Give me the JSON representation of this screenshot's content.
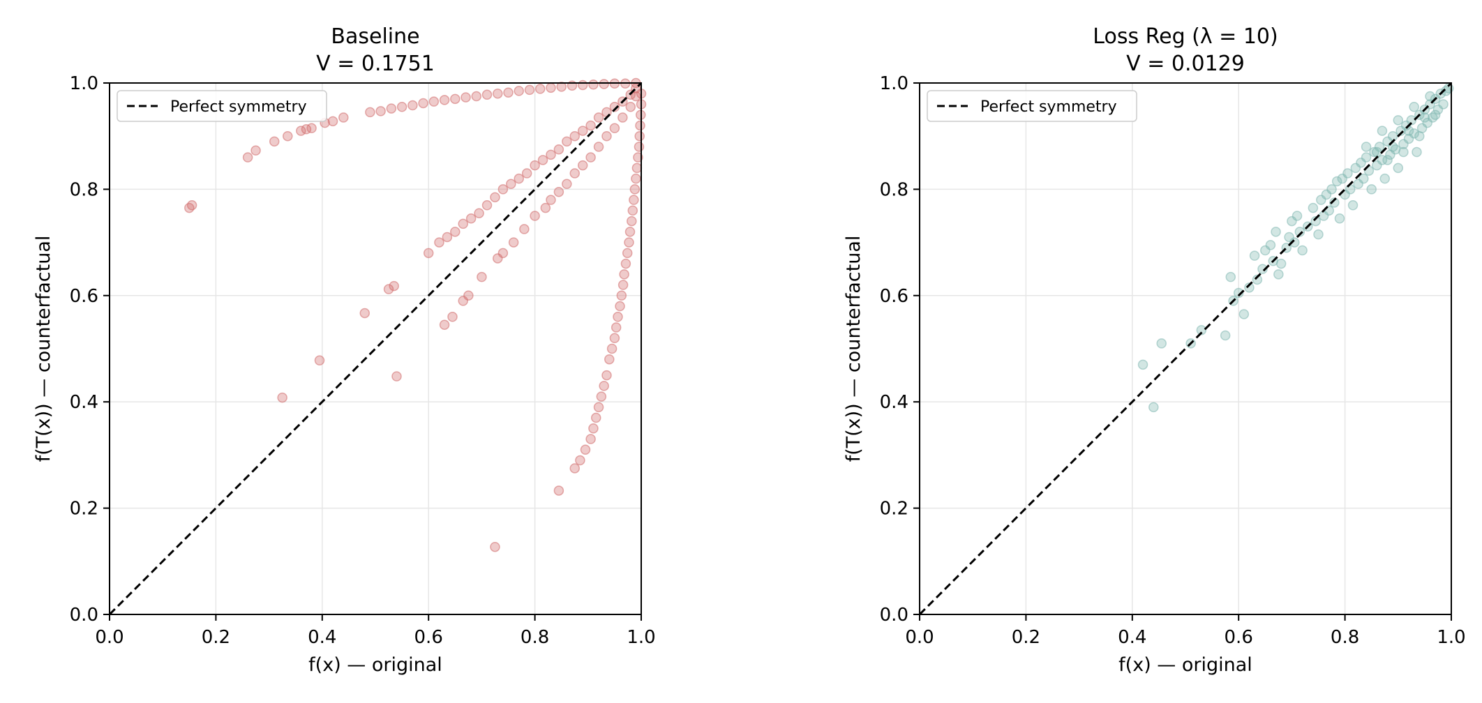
{
  "chart_data": [
    {
      "type": "scatter",
      "title": "Baseline",
      "subtitle": "V = 0.1751",
      "xlabel": "f(x)  — original",
      "ylabel": "f(T(x))  — counterfactual",
      "xlim": [
        0.0,
        1.0
      ],
      "ylim": [
        0.0,
        1.0
      ],
      "xticks": [
        "0.0",
        "0.2",
        "0.4",
        "0.6",
        "0.8",
        "1.0"
      ],
      "yticks": [
        "0.0",
        "0.2",
        "0.4",
        "0.6",
        "0.8",
        "1.0"
      ],
      "grid": true,
      "legend": {
        "position": "top-left",
        "entries": [
          "Perfect symmetry"
        ]
      },
      "reference_line": {
        "label": "Perfect symmetry",
        "from": [
          0,
          0
        ],
        "to": [
          1,
          1
        ],
        "style": "dashed",
        "color": "#000000"
      },
      "series": [
        {
          "color": "#d06a6a",
          "points": [
            [
              0.15,
              0.765
            ],
            [
              0.155,
              0.77
            ],
            [
              0.26,
              0.86
            ],
            [
              0.275,
              0.873
            ],
            [
              0.31,
              0.89
            ],
            [
              0.335,
              0.9
            ],
            [
              0.36,
              0.91
            ],
            [
              0.37,
              0.913
            ],
            [
              0.38,
              0.915
            ],
            [
              0.405,
              0.925
            ],
            [
              0.42,
              0.928
            ],
            [
              0.44,
              0.935
            ],
            [
              0.49,
              0.945
            ],
            [
              0.51,
              0.947
            ],
            [
              0.53,
              0.952
            ],
            [
              0.55,
              0.955
            ],
            [
              0.57,
              0.958
            ],
            [
              0.59,
              0.962
            ],
            [
              0.61,
              0.965
            ],
            [
              0.63,
              0.968
            ],
            [
              0.65,
              0.97
            ],
            [
              0.67,
              0.973
            ],
            [
              0.69,
              0.975
            ],
            [
              0.71,
              0.978
            ],
            [
              0.73,
              0.98
            ],
            [
              0.75,
              0.982
            ],
            [
              0.77,
              0.985
            ],
            [
              0.79,
              0.987
            ],
            [
              0.81,
              0.989
            ],
            [
              0.83,
              0.991
            ],
            [
              0.85,
              0.993
            ],
            [
              0.87,
              0.995
            ],
            [
              0.89,
              0.996
            ],
            [
              0.91,
              0.997
            ],
            [
              0.93,
              0.998
            ],
            [
              0.95,
              0.999
            ],
            [
              0.97,
              0.999
            ],
            [
              0.99,
              1.0
            ],
            [
              0.6,
              0.68
            ],
            [
              0.62,
              0.7
            ],
            [
              0.635,
              0.71
            ],
            [
              0.65,
              0.72
            ],
            [
              0.665,
              0.735
            ],
            [
              0.68,
              0.745
            ],
            [
              0.695,
              0.755
            ],
            [
              0.71,
              0.77
            ],
            [
              0.725,
              0.785
            ],
            [
              0.74,
              0.8
            ],
            [
              0.755,
              0.81
            ],
            [
              0.77,
              0.82
            ],
            [
              0.785,
              0.83
            ],
            [
              0.8,
              0.845
            ],
            [
              0.815,
              0.855
            ],
            [
              0.83,
              0.865
            ],
            [
              0.845,
              0.875
            ],
            [
              0.86,
              0.89
            ],
            [
              0.875,
              0.9
            ],
            [
              0.89,
              0.91
            ],
            [
              0.905,
              0.92
            ],
            [
              0.92,
              0.935
            ],
            [
              0.935,
              0.945
            ],
            [
              0.95,
              0.955
            ],
            [
              0.965,
              0.965
            ],
            [
              0.98,
              0.978
            ],
            [
              0.99,
              0.99
            ],
            [
              0.63,
              0.545
            ],
            [
              0.645,
              0.56
            ],
            [
              0.665,
              0.59
            ],
            [
              0.675,
              0.6
            ],
            [
              0.7,
              0.635
            ],
            [
              0.73,
              0.67
            ],
            [
              0.74,
              0.68
            ],
            [
              0.76,
              0.7
            ],
            [
              0.78,
              0.725
            ],
            [
              0.8,
              0.75
            ],
            [
              0.82,
              0.765
            ],
            [
              0.83,
              0.78
            ],
            [
              0.845,
              0.795
            ],
            [
              0.86,
              0.81
            ],
            [
              0.875,
              0.83
            ],
            [
              0.89,
              0.845
            ],
            [
              0.905,
              0.86
            ],
            [
              0.92,
              0.88
            ],
            [
              0.935,
              0.9
            ],
            [
              0.95,
              0.915
            ],
            [
              0.965,
              0.935
            ],
            [
              0.98,
              0.955
            ],
            [
              0.99,
              0.975
            ],
            [
              0.525,
              0.612
            ],
            [
              0.535,
              0.618
            ],
            [
              0.48,
              0.567
            ],
            [
              0.395,
              0.478
            ],
            [
              0.325,
              0.408
            ],
            [
              0.54,
              0.448
            ],
            [
              0.725,
              0.127
            ],
            [
              0.845,
              0.233
            ],
            [
              0.875,
              0.275
            ],
            [
              0.885,
              0.29
            ],
            [
              0.895,
              0.31
            ],
            [
              0.905,
              0.33
            ],
            [
              0.91,
              0.35
            ],
            [
              0.915,
              0.37
            ],
            [
              0.92,
              0.39
            ],
            [
              0.925,
              0.41
            ],
            [
              0.93,
              0.43
            ],
            [
              0.935,
              0.45
            ],
            [
              0.94,
              0.48
            ],
            [
              0.945,
              0.5
            ],
            [
              0.95,
              0.52
            ],
            [
              0.953,
              0.54
            ],
            [
              0.956,
              0.56
            ],
            [
              0.96,
              0.58
            ],
            [
              0.963,
              0.6
            ],
            [
              0.966,
              0.62
            ],
            [
              0.968,
              0.64
            ],
            [
              0.971,
              0.66
            ],
            [
              0.974,
              0.68
            ],
            [
              0.977,
              0.7
            ],
            [
              0.979,
              0.72
            ],
            [
              0.982,
              0.74
            ],
            [
              0.984,
              0.76
            ],
            [
              0.986,
              0.78
            ],
            [
              0.988,
              0.8
            ],
            [
              0.99,
              0.82
            ],
            [
              0.992,
              0.84
            ],
            [
              0.994,
              0.86
            ],
            [
              0.996,
              0.88
            ],
            [
              0.997,
              0.9
            ],
            [
              0.998,
              0.92
            ],
            [
              0.999,
              0.94
            ],
            [
              1.0,
              0.96
            ],
            [
              1.0,
              0.98
            ]
          ]
        }
      ]
    },
    {
      "type": "scatter",
      "title": "Loss Reg  (λ = 10)",
      "subtitle": "V = 0.0129",
      "xlabel": "f(x)  — original",
      "ylabel": "f(T(x))  — counterfactual",
      "xlim": [
        0.0,
        1.0
      ],
      "ylim": [
        0.0,
        1.0
      ],
      "xticks": [
        "0.0",
        "0.2",
        "0.4",
        "0.6",
        "0.8",
        "1.0"
      ],
      "yticks": [
        "0.0",
        "0.2",
        "0.4",
        "0.6",
        "0.8",
        "1.0"
      ],
      "grid": true,
      "legend": {
        "position": "top-left",
        "entries": [
          "Perfect symmetry"
        ]
      },
      "reference_line": {
        "label": "Perfect symmetry",
        "from": [
          0,
          0
        ],
        "to": [
          1,
          1
        ],
        "style": "dashed",
        "color": "#000000"
      },
      "series": [
        {
          "color": "#7fb6b0",
          "points": [
            [
              0.42,
              0.47
            ],
            [
              0.44,
              0.39
            ],
            [
              0.455,
              0.51
            ],
            [
              0.51,
              0.51
            ],
            [
              0.53,
              0.535
            ],
            [
              0.575,
              0.525
            ],
            [
              0.585,
              0.635
            ],
            [
              0.59,
              0.59
            ],
            [
              0.6,
              0.605
            ],
            [
              0.61,
              0.565
            ],
            [
              0.62,
              0.615
            ],
            [
              0.63,
              0.675
            ],
            [
              0.635,
              0.63
            ],
            [
              0.645,
              0.65
            ],
            [
              0.65,
              0.685
            ],
            [
              0.66,
              0.695
            ],
            [
              0.665,
              0.665
            ],
            [
              0.67,
              0.72
            ],
            [
              0.675,
              0.64
            ],
            [
              0.68,
              0.66
            ],
            [
              0.69,
              0.69
            ],
            [
              0.695,
              0.71
            ],
            [
              0.7,
              0.74
            ],
            [
              0.705,
              0.7
            ],
            [
              0.71,
              0.75
            ],
            [
              0.715,
              0.72
            ],
            [
              0.72,
              0.685
            ],
            [
              0.73,
              0.73
            ],
            [
              0.74,
              0.765
            ],
            [
              0.745,
              0.74
            ],
            [
              0.75,
              0.715
            ],
            [
              0.755,
              0.78
            ],
            [
              0.76,
              0.75
            ],
            [
              0.765,
              0.79
            ],
            [
              0.77,
              0.76
            ],
            [
              0.775,
              0.8
            ],
            [
              0.78,
              0.775
            ],
            [
              0.785,
              0.815
            ],
            [
              0.79,
              0.745
            ],
            [
              0.795,
              0.82
            ],
            [
              0.8,
              0.79
            ],
            [
              0.805,
              0.83
            ],
            [
              0.81,
              0.8
            ],
            [
              0.815,
              0.77
            ],
            [
              0.82,
              0.84
            ],
            [
              0.825,
              0.81
            ],
            [
              0.83,
              0.85
            ],
            [
              0.835,
              0.82
            ],
            [
              0.84,
              0.86
            ],
            [
              0.845,
              0.835
            ],
            [
              0.85,
              0.8
            ],
            [
              0.855,
              0.87
            ],
            [
              0.86,
              0.845
            ],
            [
              0.865,
              0.88
            ],
            [
              0.87,
              0.855
            ],
            [
              0.875,
              0.82
            ],
            [
              0.88,
              0.89
            ],
            [
              0.885,
              0.865
            ],
            [
              0.89,
              0.9
            ],
            [
              0.895,
              0.875
            ],
            [
              0.9,
              0.84
            ],
            [
              0.905,
              0.91
            ],
            [
              0.91,
              0.885
            ],
            [
              0.915,
              0.92
            ],
            [
              0.92,
              0.895
            ],
            [
              0.925,
              0.93
            ],
            [
              0.93,
              0.905
            ],
            [
              0.935,
              0.87
            ],
            [
              0.94,
              0.94
            ],
            [
              0.945,
              0.915
            ],
            [
              0.95,
              0.95
            ],
            [
              0.955,
              0.925
            ],
            [
              0.96,
              0.96
            ],
            [
              0.965,
              0.935
            ],
            [
              0.97,
              0.97
            ],
            [
              0.975,
              0.95
            ],
            [
              0.98,
              0.98
            ],
            [
              0.985,
              0.96
            ],
            [
              0.99,
              0.985
            ],
            [
              0.995,
              0.99
            ],
            [
              0.84,
              0.88
            ],
            [
              0.87,
              0.91
            ],
            [
              0.9,
              0.93
            ],
            [
              0.93,
              0.955
            ],
            [
              0.96,
              0.975
            ],
            [
              0.88,
              0.855
            ],
            [
              0.91,
              0.87
            ],
            [
              0.94,
              0.9
            ],
            [
              0.97,
              0.94
            ],
            [
              0.86,
              0.87
            ],
            [
              0.89,
              0.88
            ],
            [
              0.92,
              0.91
            ],
            [
              0.95,
              0.935
            ]
          ]
        }
      ]
    }
  ]
}
